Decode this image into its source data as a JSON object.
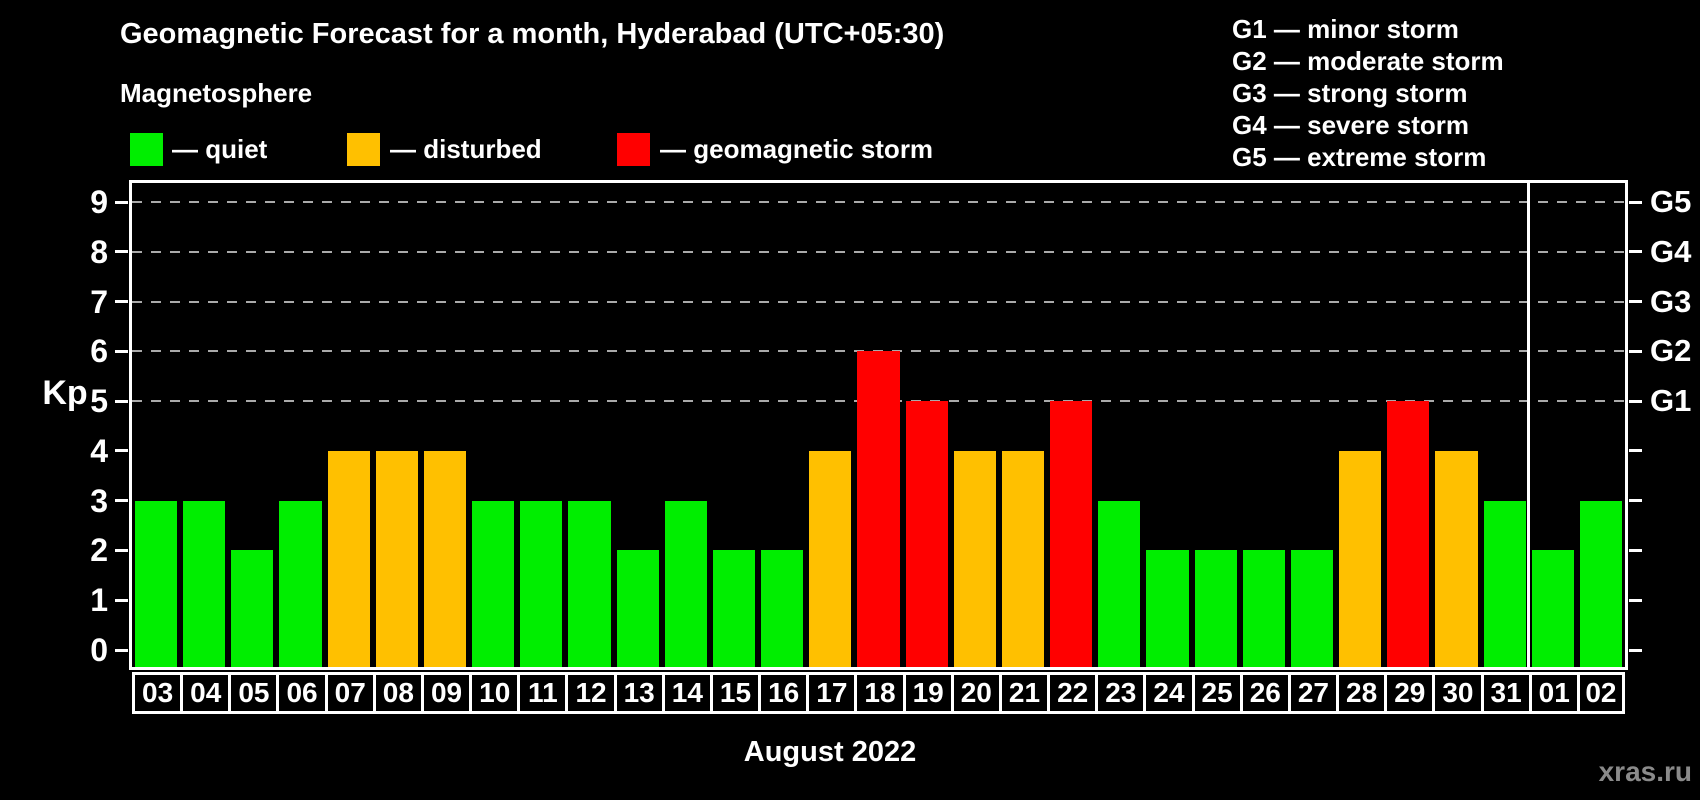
{
  "page": {
    "background": "#000000"
  },
  "header": {
    "title": "Geomagnetic Forecast for a month, Hyderabad (UTC+05:30)",
    "subtitle": "Magnetosphere"
  },
  "legend": {
    "items": [
      {
        "name": "quiet",
        "label": "— quiet",
        "color": "#00ee00"
      },
      {
        "name": "disturbed",
        "label": "— disturbed",
        "color": "#ffc000"
      },
      {
        "name": "storm",
        "label": "— geomagnetic storm",
        "color": "#ff0000"
      }
    ]
  },
  "g_legend": {
    "lines": [
      "G1 — minor storm",
      "G2 — moderate storm",
      "G3 — strong storm",
      "G4 — severe storm",
      "G5 — extreme storm"
    ]
  },
  "watermark": "xras.ru",
  "chart_data": {
    "type": "bar",
    "title": "Geomagnetic Forecast for a month, Hyderabad (UTC+05:30)",
    "xlabel": "August 2022",
    "ylabel": "Kp",
    "ylim": [
      0,
      9
    ],
    "y_ticks": [
      0,
      1,
      2,
      3,
      4,
      5,
      6,
      7,
      8,
      9
    ],
    "gridlines_at": [
      5,
      6,
      7,
      8,
      9
    ],
    "grid_color": "#aaaaaa",
    "legend_position": "top-left",
    "right_axis_labels": [
      {
        "kp": 5,
        "label": "G1"
      },
      {
        "kp": 6,
        "label": "G2"
      },
      {
        "kp": 7,
        "label": "G3"
      },
      {
        "kp": 8,
        "label": "G4"
      },
      {
        "kp": 9,
        "label": "G5"
      }
    ],
    "status_colors": {
      "quiet": "#00ee00",
      "disturbed": "#ffc000",
      "storm": "#ff0000"
    },
    "month_separator_after_index": 28,
    "days": [
      {
        "day": "03",
        "kp": 3,
        "status": "quiet"
      },
      {
        "day": "04",
        "kp": 3,
        "status": "quiet"
      },
      {
        "day": "05",
        "kp": 2,
        "status": "quiet"
      },
      {
        "day": "06",
        "kp": 3,
        "status": "quiet"
      },
      {
        "day": "07",
        "kp": 4,
        "status": "disturbed"
      },
      {
        "day": "08",
        "kp": 4,
        "status": "disturbed"
      },
      {
        "day": "09",
        "kp": 4,
        "status": "disturbed"
      },
      {
        "day": "10",
        "kp": 3,
        "status": "quiet"
      },
      {
        "day": "11",
        "kp": 3,
        "status": "quiet"
      },
      {
        "day": "12",
        "kp": 3,
        "status": "quiet"
      },
      {
        "day": "13",
        "kp": 2,
        "status": "quiet"
      },
      {
        "day": "14",
        "kp": 3,
        "status": "quiet"
      },
      {
        "day": "15",
        "kp": 2,
        "status": "quiet"
      },
      {
        "day": "16",
        "kp": 2,
        "status": "quiet"
      },
      {
        "day": "17",
        "kp": 4,
        "status": "disturbed"
      },
      {
        "day": "18",
        "kp": 6,
        "status": "storm"
      },
      {
        "day": "19",
        "kp": 5,
        "status": "storm"
      },
      {
        "day": "20",
        "kp": 4,
        "status": "disturbed"
      },
      {
        "day": "21",
        "kp": 4,
        "status": "disturbed"
      },
      {
        "day": "22",
        "kp": 5,
        "status": "storm"
      },
      {
        "day": "23",
        "kp": 3,
        "status": "quiet"
      },
      {
        "day": "24",
        "kp": 2,
        "status": "quiet"
      },
      {
        "day": "25",
        "kp": 2,
        "status": "quiet"
      },
      {
        "day": "26",
        "kp": 2,
        "status": "quiet"
      },
      {
        "day": "27",
        "kp": 2,
        "status": "quiet"
      },
      {
        "day": "28",
        "kp": 4,
        "status": "disturbed"
      },
      {
        "day": "29",
        "kp": 5,
        "status": "storm"
      },
      {
        "day": "30",
        "kp": 4,
        "status": "disturbed"
      },
      {
        "day": "31",
        "kp": 3,
        "status": "quiet"
      },
      {
        "day": "01",
        "kp": 2,
        "status": "quiet"
      },
      {
        "day": "02",
        "kp": 3,
        "status": "quiet"
      }
    ]
  }
}
